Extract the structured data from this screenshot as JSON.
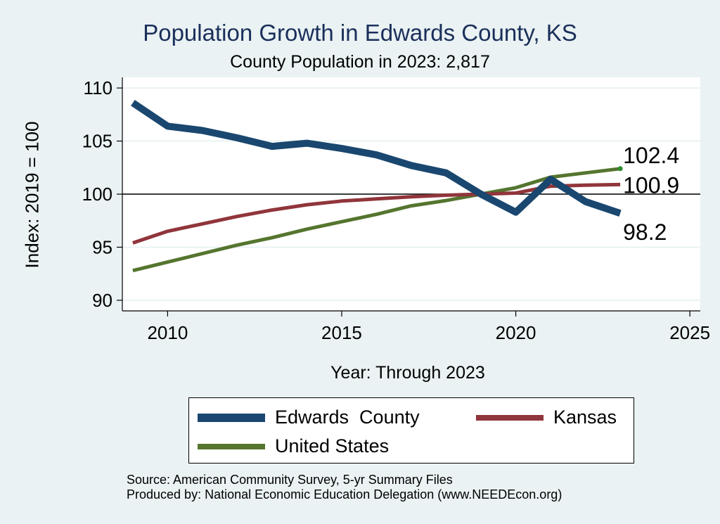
{
  "title": "Population Growth in Edwards County, KS",
  "subtitle": "County Population in 2023: 2,817",
  "source_lines": [
    "Source: American Community Survey, 5-yr Summary Files",
    "Produced by: National Economic Education Delegation (www.NEEDEcon.org)"
  ],
  "chart_data": {
    "type": "line",
    "xlabel": "Year: Through 2023",
    "ylabel": "Index: 2019 = 100",
    "xlim": [
      2008.7,
      2025.3
    ],
    "ylim": [
      89,
      111
    ],
    "x_ticks": [
      2010,
      2015,
      2020,
      2025
    ],
    "y_ticks": [
      90,
      95,
      100,
      105,
      110
    ],
    "reference_line": 100,
    "grid": true,
    "legend_position": "bottom",
    "x": [
      2009,
      2010,
      2011,
      2012,
      2013,
      2014,
      2015,
      2016,
      2017,
      2018,
      2019,
      2020,
      2021,
      2022,
      2023
    ],
    "series": [
      {
        "name": "Edwards  County",
        "color": "#1a476f",
        "values": [
          108.6,
          106.4,
          106.0,
          105.3,
          104.5,
          104.8,
          104.3,
          103.7,
          102.7,
          102.0,
          100.0,
          98.3,
          101.4,
          99.3,
          98.2
        ],
        "end_label": "98.2"
      },
      {
        "name": "Kansas",
        "color": "#90353b",
        "values": [
          95.4,
          96.5,
          97.2,
          97.9,
          98.5,
          99.0,
          99.35,
          99.55,
          99.75,
          99.9,
          100.0,
          100.1,
          100.75,
          100.85,
          100.9
        ],
        "end_label": "100.9"
      },
      {
        "name": "United States",
        "color": "#55752f",
        "values": [
          92.8,
          93.6,
          94.4,
          95.2,
          95.9,
          96.7,
          97.4,
          98.1,
          98.9,
          99.4,
          100.0,
          100.6,
          101.6,
          102.0,
          102.4
        ],
        "end_label": "102.4"
      }
    ]
  }
}
